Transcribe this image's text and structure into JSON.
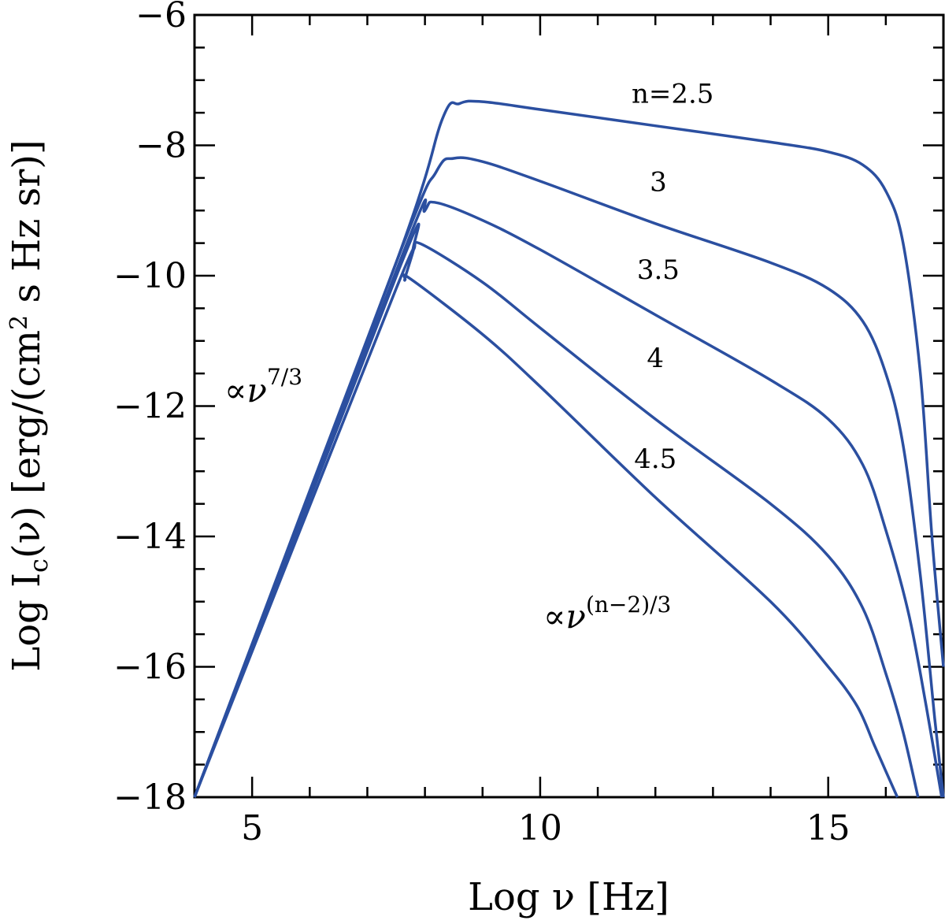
{
  "chart_data": {
    "type": "line",
    "xlabel": "Log ν [Hz]",
    "ylabel": "Log I_c(ν) [erg/(cm² s Hz sr)]",
    "ylabel_parts": {
      "pre": "Log I",
      "sub": "c",
      "mid": "(ν) [erg/(cm",
      "sup": "2",
      "post": " s Hz sr)]"
    },
    "xlim": [
      4,
      17
    ],
    "ylim": [
      -18,
      -6
    ],
    "x_ticks": [
      5,
      10,
      15
    ],
    "y_ticks": [
      -18,
      -16,
      -14,
      -12,
      -10,
      -8,
      -6
    ],
    "x_tick_labels": [
      "5",
      "10",
      "15"
    ],
    "y_tick_labels": [
      "−18",
      "−16",
      "−14",
      "−12",
      "−10",
      "−8",
      "−6"
    ],
    "line_color": "#2b4fa0",
    "series": [
      {
        "name": "n=2.5",
        "label": "n=2.5",
        "n": 2.5,
        "x": [
          4.0,
          7.5,
          8.3,
          8.6,
          9.0,
          10,
          12,
          14,
          15,
          15.6,
          16.0,
          16.3,
          16.6,
          16.8,
          17.0
        ],
        "y": [
          -18.0,
          -9.8,
          -7.6,
          -7.36,
          -7.33,
          -7.45,
          -7.7,
          -7.95,
          -8.1,
          -8.3,
          -8.7,
          -9.5,
          -11.5,
          -14.0,
          -16.0
        ]
      },
      {
        "name": "3",
        "label": "3",
        "n": 3,
        "x": [
          4.0,
          7.5,
          8.2,
          8.5,
          9,
          10,
          12,
          14,
          15,
          15.6,
          16.0,
          16.3,
          16.6,
          16.85,
          17.0
        ],
        "y": [
          -18.0,
          -9.8,
          -8.4,
          -8.2,
          -8.25,
          -8.55,
          -9.2,
          -9.8,
          -10.2,
          -10.7,
          -11.5,
          -12.6,
          -14.6,
          -16.8,
          -18.0
        ]
      },
      {
        "name": "3.5",
        "label": "3.5",
        "n": 3.5,
        "x": [
          4.0,
          7.6,
          8.0,
          8.2,
          9,
          10,
          12,
          14,
          15,
          15.6,
          16.0,
          16.4,
          16.7,
          16.97
        ],
        "y": [
          -18.0,
          -9.7,
          -9.0,
          -8.88,
          -9.15,
          -9.6,
          -10.6,
          -11.6,
          -12.2,
          -12.9,
          -13.9,
          -15.2,
          -16.6,
          -18.0
        ]
      },
      {
        "name": "4",
        "label": "4",
        "n": 4,
        "x": [
          4.0,
          7.55,
          7.8,
          7.95,
          9,
          10,
          12,
          14,
          15,
          15.6,
          16.0,
          16.3,
          16.56
        ],
        "y": [
          -18.0,
          -9.9,
          -9.6,
          -9.52,
          -10.1,
          -10.8,
          -12.2,
          -13.5,
          -14.3,
          -15.1,
          -16.1,
          -17.0,
          -18.0
        ]
      },
      {
        "name": "4.5",
        "label": "4.5",
        "n": 4.5,
        "x": [
          4.0,
          7.5,
          7.65,
          7.75,
          9,
          10,
          12,
          14,
          15,
          15.5,
          15.8,
          16.0,
          16.2
        ],
        "y": [
          -18.0,
          -10.2,
          -10.07,
          -10.05,
          -10.9,
          -11.7,
          -13.4,
          -15.0,
          -16.0,
          -16.6,
          -17.2,
          -17.6,
          -18.0
        ]
      }
    ],
    "annotations": {
      "low_slope": {
        "base": "∝ν",
        "sup": "7/3"
      },
      "high_slope": {
        "base": "∝ν",
        "sup": "(n−2)/3"
      }
    }
  }
}
